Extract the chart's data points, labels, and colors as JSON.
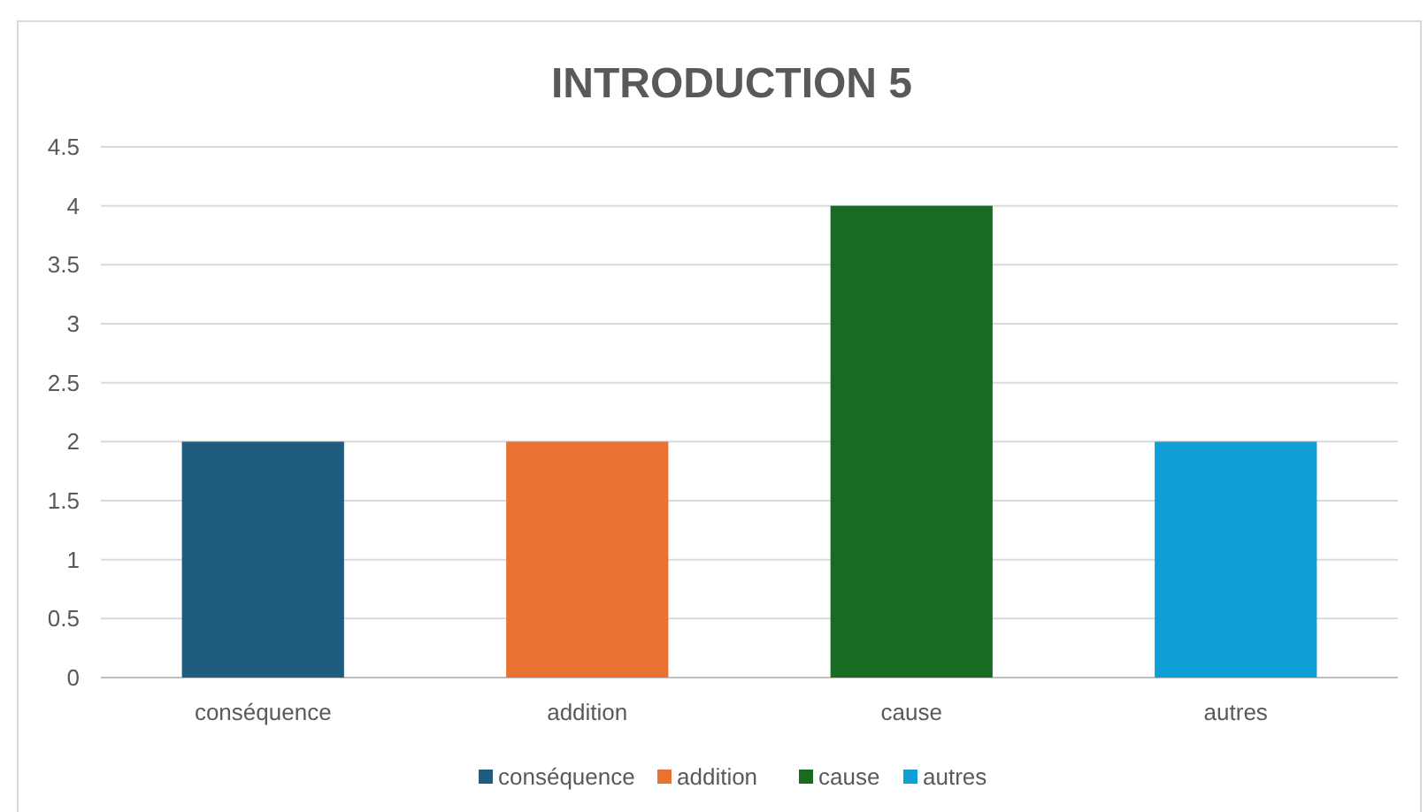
{
  "chart_data": {
    "type": "bar",
    "title": "INTRODUCTION 5",
    "categories": [
      "conséquence",
      "addition",
      "cause",
      "autres"
    ],
    "stacked": true,
    "series": [
      {
        "name": "conséquence",
        "color": "#1f5c80",
        "values": [
          2,
          null,
          null,
          null
        ]
      },
      {
        "name": "addition",
        "color": "#e97132",
        "values": [
          null,
          2,
          null,
          null
        ]
      },
      {
        "name": "cause",
        "color": "#196b24",
        "values": [
          null,
          null,
          4,
          null
        ]
      },
      {
        "name": "autres",
        "color": "#0f9ed5",
        "values": [
          null,
          null,
          null,
          2
        ]
      }
    ],
    "ylim": [
      0,
      4.5
    ],
    "yticks": [
      0,
      0.5,
      1,
      1.5,
      2,
      2.5,
      3,
      3.5,
      4,
      4.5
    ],
    "grid": "y",
    "legend": "bottom"
  }
}
